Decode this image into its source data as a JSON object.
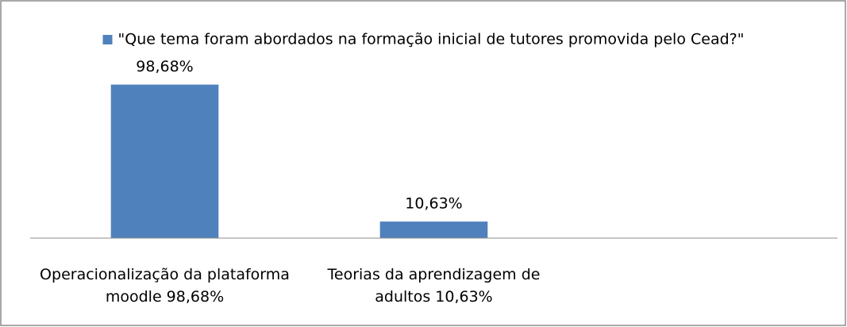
{
  "chart_data": {
    "type": "bar",
    "categories": [
      "Operacionalização da plataforma moodle 98,68%",
      "Teorias da aprendizagem de adultos 10,63%",
      null
    ],
    "series": [
      {
        "name": "\"Que tema foram abordados na formação inicial de tutores promovida pelo Cead?\"",
        "color": "#4f81bd",
        "values": [
          98.68,
          10.63,
          null
        ],
        "value_labels": [
          "98,68%",
          "10,63%",
          null
        ]
      }
    ],
    "ylim": [
      0,
      100
    ],
    "legend": "top"
  }
}
